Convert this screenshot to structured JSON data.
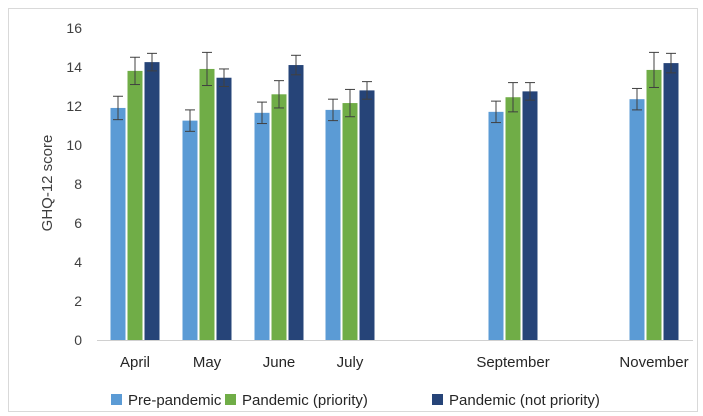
{
  "chart_data": {
    "type": "bar",
    "ylabel": "GHQ-12 score",
    "xlabel": "",
    "ylim": [
      0,
      16
    ],
    "yticks": [
      0,
      2,
      4,
      6,
      8,
      10,
      12,
      14,
      16
    ],
    "grid": false,
    "legend_position": "bottom",
    "categories": [
      "April",
      "May",
      "June",
      "July",
      "September",
      "November"
    ],
    "series": [
      {
        "name": "Pre-pandemic",
        "color": "#5b9bd5",
        "values": [
          11.9,
          11.25,
          11.65,
          11.8,
          11.7,
          12.35
        ],
        "error": [
          0.6,
          0.55,
          0.55,
          0.55,
          0.55,
          0.55
        ]
      },
      {
        "name": "Pandemic (priority)",
        "color": "#70ad47",
        "values": [
          13.8,
          13.9,
          12.6,
          12.15,
          12.45,
          13.85
        ],
        "error": [
          0.7,
          0.85,
          0.7,
          0.7,
          0.75,
          0.9
        ]
      },
      {
        "name": "Pandemic (not priority)",
        "color": "#264478",
        "values": [
          14.25,
          13.45,
          14.1,
          12.8,
          12.75,
          14.2
        ],
        "error": [
          0.45,
          0.45,
          0.5,
          0.45,
          0.45,
          0.5
        ]
      }
    ]
  }
}
